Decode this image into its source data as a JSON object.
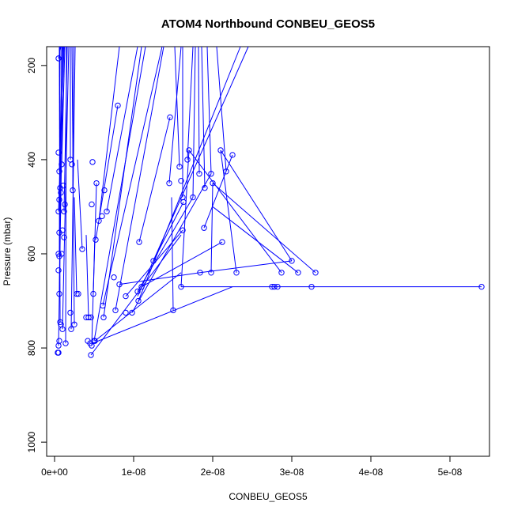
{
  "chart_data": {
    "type": "scatter",
    "title": "ATOM4 Northbound CONBEU_GEOS5",
    "xlabel": "CONBEU_GEOS5",
    "ylabel": "Pressure (mbar)",
    "xlim": [
      -1e-09,
      5.5e-08
    ],
    "ylim": [
      1030,
      160
    ],
    "y_reversed": true,
    "x_ticks": [
      0,
      1e-08,
      2e-08,
      3e-08,
      4e-08,
      5e-08
    ],
    "x_tick_labels": [
      "0e+00",
      "1e-08",
      "2e-08",
      "3e-08",
      "4e-08",
      "5e-08"
    ],
    "y_ticks": [
      200,
      400,
      600,
      800,
      1000
    ],
    "y_tick_labels": [
      "200",
      "400",
      "600",
      "800",
      "1000"
    ],
    "series_color": "#0000ff",
    "points": [
      [
        5e-10,
        185
      ],
      [
        5e-10,
        385
      ],
      [
        6e-10,
        425
      ],
      [
        7e-10,
        460
      ],
      [
        6e-10,
        485
      ],
      [
        5e-10,
        510
      ],
      [
        6e-10,
        555
      ],
      [
        5e-10,
        600
      ],
      [
        6e-10,
        605
      ],
      [
        5e-10,
        635
      ],
      [
        6e-10,
        685
      ],
      [
        7e-10,
        745
      ],
      [
        8e-10,
        750
      ],
      [
        6e-10,
        785
      ],
      [
        5e-10,
        795
      ],
      [
        5e-10,
        810
      ],
      [
        4e-10,
        810
      ],
      [
        9e-10,
        410
      ],
      [
        1.1e-09,
        455
      ],
      [
        1.3e-09,
        495
      ],
      [
        1.2e-09,
        510
      ],
      [
        1e-09,
        550
      ],
      [
        1.2e-09,
        565
      ],
      [
        1.4e-09,
        790
      ],
      [
        1e-09,
        760
      ],
      [
        8e-10,
        470
      ],
      [
        9e-10,
        600
      ],
      [
        2e-09,
        400
      ],
      [
        2.2e-09,
        410
      ],
      [
        2.3e-09,
        465
      ],
      [
        2.5e-09,
        750
      ],
      [
        2.1e-09,
        760
      ],
      [
        2e-09,
        725
      ],
      [
        2.8e-09,
        685
      ],
      [
        3e-09,
        685
      ],
      [
        3.5e-09,
        590
      ],
      [
        4e-09,
        735
      ],
      [
        4.3e-09,
        735
      ],
      [
        4.6e-09,
        735
      ],
      [
        4.2e-09,
        785
      ],
      [
        4.5e-09,
        790
      ],
      [
        4.7e-09,
        795
      ],
      [
        4.6e-09,
        815
      ],
      [
        5e-09,
        785
      ],
      [
        5.1e-09,
        785
      ],
      [
        4.8e-09,
        405
      ],
      [
        5.3e-09,
        450
      ],
      [
        5.6e-09,
        530
      ],
      [
        5.2e-09,
        570
      ],
      [
        4.9e-09,
        685
      ],
      [
        4.7e-09,
        495
      ],
      [
        6e-09,
        520
      ],
      [
        6.3e-09,
        465
      ],
      [
        6.6e-09,
        510
      ],
      [
        6.1e-09,
        710
      ],
      [
        6.2e-09,
        735
      ],
      [
        7.5e-09,
        650
      ],
      [
        8e-09,
        285
      ],
      [
        8.2e-09,
        665
      ],
      [
        9e-09,
        690
      ],
      [
        9e-09,
        725
      ],
      [
        9.8e-09,
        725
      ],
      [
        1.07e-08,
        575
      ],
      [
        1.05e-08,
        680
      ],
      [
        1.06e-08,
        700
      ],
      [
        1.1e-08,
        670
      ],
      [
        1.25e-08,
        615
      ],
      [
        7.7e-09,
        720
      ],
      [
        1.46e-08,
        310
      ],
      [
        1.45e-08,
        450
      ],
      [
        1.5e-08,
        720
      ],
      [
        1.58e-08,
        415
      ],
      [
        1.6e-08,
        445
      ],
      [
        1.62e-08,
        480
      ],
      [
        1.63e-08,
        490
      ],
      [
        1.62e-08,
        550
      ],
      [
        1.6e-08,
        670
      ],
      [
        1.7e-08,
        380
      ],
      [
        1.68e-08,
        400
      ],
      [
        1.75e-08,
        480
      ],
      [
        1.83e-08,
        430
      ],
      [
        1.9e-08,
        460
      ],
      [
        1.89e-08,
        545
      ],
      [
        1.84e-08,
        640
      ],
      [
        1.98e-08,
        430
      ],
      [
        2e-08,
        450
      ],
      [
        1.98e-08,
        640
      ],
      [
        2.1e-08,
        380
      ],
      [
        2.12e-08,
        575
      ],
      [
        2.17e-08,
        425
      ],
      [
        2.25e-08,
        390
      ],
      [
        2.3e-08,
        640
      ],
      [
        2.75e-08,
        670
      ],
      [
        2.78e-08,
        670
      ],
      [
        2.82e-08,
        670
      ],
      [
        2.87e-08,
        640
      ],
      [
        3e-08,
        615
      ],
      [
        3.08e-08,
        640
      ],
      [
        3.25e-08,
        670
      ],
      [
        3.3e-08,
        640
      ],
      [
        5.4e-08,
        670
      ]
    ],
    "segments": [
      [
        [
          5e-10,
          185
        ],
        [
          8e-10,
          150
        ]
      ],
      [
        [
          6e-10,
          425
        ],
        [
          1e-09,
          150
        ]
      ],
      [
        [
          5e-10,
          510
        ],
        [
          1.2e-09,
          150
        ]
      ],
      [
        [
          6e-10,
          605
        ],
        [
          7e-10,
          150
        ]
      ],
      [
        [
          6e-10,
          685
        ],
        [
          9e-10,
          150
        ]
      ],
      [
        [
          7e-10,
          745
        ],
        [
          6e-10,
          150
        ]
      ],
      [
        [
          5e-10,
          795
        ],
        [
          1.1e-09,
          150
        ]
      ],
      [
        [
          9e-10,
          410
        ],
        [
          1.3e-09,
          150
        ]
      ],
      [
        [
          1.2e-09,
          510
        ],
        [
          1.6e-09,
          150
        ]
      ],
      [
        [
          1.4e-09,
          790
        ],
        [
          1.5e-09,
          150
        ]
      ],
      [
        [
          1e-09,
          760
        ],
        [
          1.8e-09,
          150
        ]
      ],
      [
        [
          2e-09,
          400
        ],
        [
          2e-09,
          150
        ]
      ],
      [
        [
          2.3e-09,
          465
        ],
        [
          2.4e-09,
          150
        ]
      ],
      [
        [
          2.5e-09,
          750
        ],
        [
          2.2e-09,
          150
        ]
      ],
      [
        [
          2.1e-09,
          760
        ],
        [
          2.6e-09,
          150
        ]
      ],
      [
        [
          2.8e-09,
          685
        ],
        [
          2.5e-09,
          480
        ]
      ],
      [
        [
          3.5e-09,
          590
        ],
        [
          2.9e-09,
          400
        ]
      ],
      [
        [
          4.3e-09,
          735
        ],
        [
          4e-09,
          560
        ]
      ],
      [
        [
          4.7e-09,
          795
        ],
        [
          5.1e-09,
          560
        ]
      ],
      [
        [
          4.9e-09,
          685
        ],
        [
          5.3e-09,
          450
        ]
      ],
      [
        [
          5.2e-09,
          570
        ],
        [
          8e-09,
          285
        ]
      ],
      [
        [
          5.6e-09,
          530
        ],
        [
          8.2e-09,
          150
        ]
      ],
      [
        [
          6.6e-09,
          510
        ],
        [
          1.05e-08,
          150
        ]
      ],
      [
        [
          6.2e-09,
          735
        ],
        [
          1.1e-08,
          150
        ]
      ],
      [
        [
          5e-09,
          785
        ],
        [
          1.15e-08,
          150
        ]
      ],
      [
        [
          4.6e-09,
          815
        ],
        [
          1.6e-08,
          560
        ]
      ],
      [
        [
          5.1e-09,
          785
        ],
        [
          1.6e-08,
          640
        ]
      ],
      [
        [
          4.8e-09,
          790
        ],
        [
          2.25e-08,
          670
        ]
      ],
      [
        [
          6.1e-09,
          710
        ],
        [
          1.36e-08,
          150
        ]
      ],
      [
        [
          7.7e-09,
          720
        ],
        [
          1.38e-08,
          150
        ]
      ],
      [
        [
          8.2e-09,
          665
        ],
        [
          1.84e-08,
          640
        ]
      ],
      [
        [
          9e-09,
          690
        ],
        [
          1.62e-08,
          550
        ]
      ],
      [
        [
          9.8e-09,
          725
        ],
        [
          1.98e-08,
          430
        ]
      ],
      [
        [
          1.05e-08,
          680
        ],
        [
          1.75e-08,
          480
        ]
      ],
      [
        [
          1.07e-08,
          575
        ],
        [
          1.46e-08,
          310
        ]
      ],
      [
        [
          1.25e-08,
          615
        ],
        [
          1.63e-08,
          490
        ]
      ],
      [
        [
          1.1e-08,
          670
        ],
        [
          2.12e-08,
          575
        ]
      ],
      [
        [
          1.06e-08,
          700
        ],
        [
          2.35e-08,
          150
        ]
      ],
      [
        [
          1.05e-08,
          690
        ],
        [
          2.45e-08,
          150
        ]
      ],
      [
        [
          1.45e-08,
          450
        ],
        [
          1.6e-08,
          150
        ]
      ],
      [
        [
          1.5e-08,
          720
        ],
        [
          1.48e-08,
          480
        ]
      ],
      [
        [
          1.58e-08,
          415
        ],
        [
          1.52e-08,
          150
        ]
      ],
      [
        [
          1.62e-08,
          480
        ],
        [
          1.62e-08,
          150
        ]
      ],
      [
        [
          1.6e-08,
          670
        ],
        [
          1.7e-08,
          380
        ]
      ],
      [
        [
          1.68e-08,
          400
        ],
        [
          1.75e-08,
          150
        ]
      ],
      [
        [
          1.75e-08,
          480
        ],
        [
          1.78e-08,
          150
        ]
      ],
      [
        [
          1.83e-08,
          430
        ],
        [
          1.82e-08,
          150
        ]
      ],
      [
        [
          1.9e-08,
          460
        ],
        [
          1.86e-08,
          150
        ]
      ],
      [
        [
          1.98e-08,
          430
        ],
        [
          1.93e-08,
          150
        ]
      ],
      [
        [
          1.98e-08,
          640
        ],
        [
          2e-08,
          450
        ]
      ],
      [
        [
          2e-08,
          450
        ],
        [
          3.3e-08,
          640
        ]
      ],
      [
        [
          1.89e-08,
          545
        ],
        [
          2.25e-08,
          390
        ]
      ],
      [
        [
          2.17e-08,
          425
        ],
        [
          2.05e-08,
          150
        ]
      ],
      [
        [
          2.3e-08,
          640
        ],
        [
          2.1e-08,
          380
        ]
      ],
      [
        [
          2.1e-08,
          380
        ],
        [
          3e-08,
          615
        ]
      ],
      [
        [
          1.7e-08,
          380
        ],
        [
          2.87e-08,
          640
        ]
      ],
      [
        [
          1.6e-08,
          670
        ],
        [
          5.4e-08,
          670
        ]
      ],
      [
        [
          1.84e-08,
          640
        ],
        [
          3e-08,
          615
        ]
      ],
      [
        [
          3.08e-08,
          640
        ],
        [
          2e-08,
          500
        ]
      ]
    ]
  }
}
